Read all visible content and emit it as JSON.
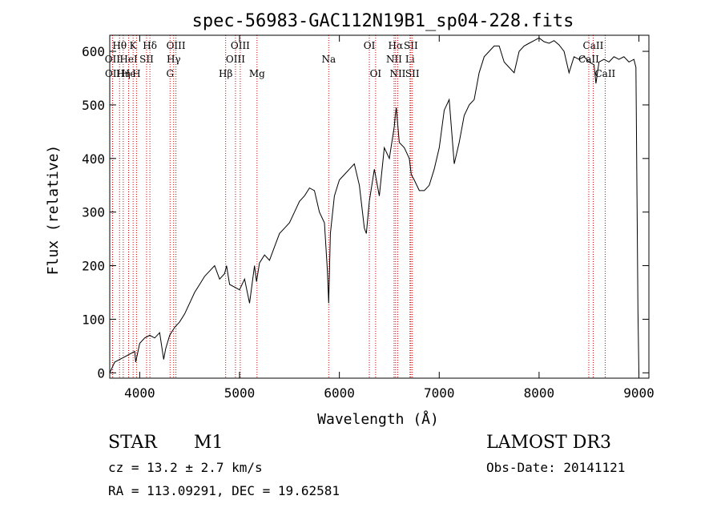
{
  "chart_data": {
    "type": "line",
    "title": "spec-56983-GAC112N19B1_sp04-228.fits",
    "xlabel": "Wavelength (Å)",
    "ylabel": "Flux (relative)",
    "xlim": [
      3700,
      9100
    ],
    "ylim": [
      -10,
      630
    ],
    "x_ticks": [
      4000,
      5000,
      6000,
      7000,
      8000,
      9000
    ],
    "y_ticks": [
      0,
      100,
      200,
      300,
      400,
      500,
      600
    ],
    "line_color": "#000000",
    "marker_color": "#cc0000",
    "series": [
      {
        "name": "flux",
        "x": [
          3700,
          3750,
          3800,
          3850,
          3900,
          3950,
          3960,
          4000,
          4050,
          4100,
          4150,
          4200,
          4240,
          4260,
          4300,
          4350,
          4400,
          4450,
          4500,
          4550,
          4600,
          4650,
          4700,
          4750,
          4800,
          4850,
          4870,
          4900,
          4950,
          5000,
          5050,
          5100,
          5150,
          5170,
          5200,
          5250,
          5300,
          5350,
          5400,
          5450,
          5500,
          5550,
          5600,
          5650,
          5700,
          5750,
          5800,
          5850,
          5880,
          5893,
          5910,
          5950,
          6000,
          6050,
          6100,
          6150,
          6200,
          6250,
          6270,
          6300,
          6350,
          6400,
          6450,
          6500,
          6550,
          6560,
          6570,
          6600,
          6650,
          6700,
          6720,
          6750,
          6800,
          6850,
          6900,
          6950,
          7000,
          7050,
          7100,
          7150,
          7200,
          7250,
          7300,
          7350,
          7400,
          7450,
          7500,
          7550,
          7600,
          7650,
          7700,
          7750,
          7800,
          7850,
          7900,
          7950,
          8000,
          8050,
          8100,
          8150,
          8200,
          8250,
          8300,
          8350,
          8400,
          8450,
          8500,
          8550,
          8570,
          8600,
          8650,
          8700,
          8750,
          8800,
          8850,
          8900,
          8950,
          8970,
          8990,
          9000
        ],
        "y": [
          0,
          20,
          25,
          30,
          35,
          40,
          20,
          55,
          65,
          70,
          65,
          75,
          25,
          45,
          70,
          85,
          95,
          110,
          130,
          150,
          165,
          180,
          190,
          200,
          175,
          185,
          200,
          165,
          160,
          155,
          175,
          130,
          200,
          170,
          205,
          220,
          210,
          235,
          260,
          270,
          280,
          300,
          320,
          330,
          345,
          340,
          300,
          280,
          190,
          130,
          260,
          330,
          360,
          370,
          380,
          390,
          350,
          270,
          260,
          320,
          380,
          330,
          420,
          400,
          460,
          480,
          495,
          430,
          420,
          400,
          370,
          360,
          340,
          340,
          350,
          380,
          420,
          490,
          510,
          390,
          430,
          480,
          500,
          510,
          560,
          590,
          600,
          610,
          610,
          580,
          570,
          560,
          600,
          610,
          615,
          620,
          625,
          618,
          615,
          620,
          612,
          600,
          560,
          590,
          585,
          590,
          580,
          575,
          540,
          580,
          585,
          580,
          590,
          585,
          590,
          580,
          585,
          570,
          120,
          0
        ]
      }
    ],
    "line_markers": [
      {
        "label": "Hθ",
        "x": 3798,
        "row": 1
      },
      {
        "label": "OII",
        "x": 3727,
        "row": 2
      },
      {
        "label": "OII",
        "x": 3729,
        "row": 3
      },
      {
        "label": "He",
        "x": 3889,
        "row": 3
      },
      {
        "label": "HeI",
        "x": 3889,
        "row": 2
      },
      {
        "label": "Hη",
        "x": 3835,
        "row": 3
      },
      {
        "label": "K",
        "x": 3934,
        "row": 1
      },
      {
        "label": "H",
        "x": 3968,
        "row": 3
      },
      {
        "label": "SII",
        "x": 4069,
        "row": 2
      },
      {
        "label": "Hδ",
        "x": 4102,
        "row": 1
      },
      {
        "label": "OIII",
        "x": 4363,
        "row": 1
      },
      {
        "label": "Hγ",
        "x": 4340,
        "row": 2
      },
      {
        "label": "G",
        "x": 4304,
        "row": 3
      },
      {
        "label": "OIII",
        "x": 5007,
        "row": 1
      },
      {
        "label": "OIII",
        "x": 4959,
        "row": 2
      },
      {
        "label": "Hβ",
        "x": 4861,
        "row": 3
      },
      {
        "label": "Mg",
        "x": 5175,
        "row": 3
      },
      {
        "label": "Na",
        "x": 5893,
        "row": 2
      },
      {
        "label": "OI",
        "x": 6300,
        "row": 1
      },
      {
        "label": "OI",
        "x": 6363,
        "row": 3
      },
      {
        "label": "Hα",
        "x": 6563,
        "row": 1
      },
      {
        "label": "SII",
        "x": 6716,
        "row": 1
      },
      {
        "label": "NII",
        "x": 6548,
        "row": 2
      },
      {
        "label": "Li",
        "x": 6707,
        "row": 2
      },
      {
        "label": "NII",
        "x": 6584,
        "row": 3
      },
      {
        "label": "SII",
        "x": 6731,
        "row": 3
      },
      {
        "label": "CaII",
        "x": 8542,
        "row": 1
      },
      {
        "label": "CaII",
        "x": 8498,
        "row": 2
      },
      {
        "label": "CaII",
        "x": 8662,
        "row": 3
      }
    ]
  },
  "info": {
    "class_label": "STAR",
    "subclass_label": "M1",
    "survey_label": "LAMOST DR3",
    "cz_text": "cz = 13.2 ± 2.7 km/s",
    "obs_date_text": "Obs-Date: 20141121",
    "coords_text": "RA = 113.09291, DEC =  19.62581"
  }
}
